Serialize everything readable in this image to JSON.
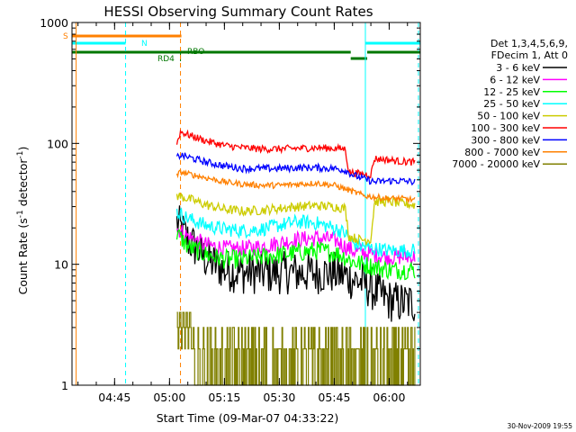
{
  "chart_data": {
    "type": "line",
    "title": "HESSI Observing Summary Count Rates",
    "xlabel": "Start Time (09-Mar-07 04:33:22)",
    "ylabel": "Count Rate (s⁻¹ detector⁻¹)",
    "ylabel_parts": {
      "main": "Count Rate (s",
      "exp1": "-1",
      "mid": " detector",
      "exp2": "-1",
      "end": ")"
    },
    "yscale": "log",
    "ylim": [
      1,
      1000
    ],
    "xlim": [
      "04:33:22",
      "06:08:30"
    ],
    "x_ticks": [
      "04:45",
      "05:00",
      "05:15",
      "05:30",
      "05:45",
      "06:00"
    ],
    "y_ticks": [
      "1",
      "10",
      "100",
      "1000"
    ],
    "legend_location": "right",
    "legend_header": [
      "Det 1,3,4,5,6,9,",
      "FDecim 1, Att 0"
    ],
    "series": [
      {
        "name": "3 - 6 keV",
        "color": "#000000",
        "x": [
          "05:02",
          "05:05",
          "05:10",
          "05:15",
          "05:20",
          "05:25",
          "05:30",
          "05:35",
          "05:40",
          "05:45",
          "05:48",
          "05:50",
          "05:53",
          "05:56",
          "06:00",
          "06:03",
          "06:07"
        ],
        "values": [
          22,
          16,
          11,
          9,
          8.5,
          8.5,
          8.5,
          8.5,
          8.5,
          8.5,
          8,
          7.5,
          7,
          6,
          5,
          4.8,
          4.8
        ],
        "noise": 0.18
      },
      {
        "name": "6 - 12 keV",
        "color": "#ff00ff",
        "x": [
          "05:02",
          "05:05",
          "05:10",
          "05:15",
          "05:20",
          "05:25",
          "05:30",
          "05:35",
          "05:40",
          "05:45",
          "05:48",
          "05:50",
          "05:53",
          "05:56",
          "06:00",
          "06:03",
          "06:07"
        ],
        "values": [
          20,
          17,
          14.5,
          13.5,
          13.5,
          14,
          15,
          16,
          16.5,
          16,
          14,
          13,
          12.5,
          12,
          11.5,
          11.5,
          11.5
        ],
        "noise": 0.07
      },
      {
        "name": "12 - 25 keV",
        "color": "#00ff00",
        "x": [
          "05:02",
          "05:05",
          "05:10",
          "05:15",
          "05:20",
          "05:25",
          "05:30",
          "05:35",
          "05:40",
          "05:45",
          "05:48",
          "05:50",
          "05:53",
          "05:56",
          "06:00",
          "06:03",
          "06:07"
        ],
        "values": [
          18,
          14,
          12,
          11,
          11,
          11.5,
          12,
          12.5,
          13,
          12.5,
          11.5,
          10.5,
          10,
          9.5,
          9,
          9,
          9
        ],
        "noise": 0.08
      },
      {
        "name": "25 - 50 keV",
        "color": "#00ffff",
        "x": [
          "05:02",
          "05:05",
          "05:10",
          "05:15",
          "05:20",
          "05:25",
          "05:30",
          "05:35",
          "05:40",
          "05:45",
          "05:48",
          "05:50",
          "05:53",
          "05:56",
          "06:00",
          "06:03",
          "06:07"
        ],
        "values": [
          27,
          24,
          21,
          19.5,
          19,
          19.5,
          21,
          22.5,
          22,
          20,
          18,
          15,
          14,
          13.5,
          13,
          13,
          13
        ],
        "noise": 0.06
      },
      {
        "name": "50 - 100 keV",
        "color": "#cccc00",
        "x": [
          "05:02",
          "05:05",
          "05:10",
          "05:15",
          "05:20",
          "05:25",
          "05:30",
          "05:35",
          "05:40",
          "05:45",
          "05:48",
          "05:49",
          "05:52",
          "05:55",
          "05:56",
          "06:00",
          "06:03",
          "06:07"
        ],
        "values": [
          37,
          35,
          31,
          28.5,
          27.5,
          28,
          29,
          30,
          30.5,
          30,
          29,
          17,
          16,
          16,
          33,
          33,
          32,
          31
        ],
        "noise": 0.04
      },
      {
        "name": "100 - 300 keV",
        "color": "#ff0000",
        "x": [
          "05:02",
          "05:03",
          "05:05",
          "05:10",
          "05:15",
          "05:20",
          "05:25",
          "05:30",
          "05:35",
          "05:40",
          "05:45",
          "05:48",
          "05:49",
          "05:52",
          "05:55",
          "05:56",
          "06:00",
          "06:03",
          "06:07"
        ],
        "values": [
          100,
          125,
          118,
          105,
          96,
          92,
          90,
          90,
          91,
          92,
          91,
          90,
          58,
          56,
          55,
          75,
          73,
          71,
          70
        ],
        "noise": 0.03
      },
      {
        "name": "300 - 800 keV",
        "color": "#0000ff",
        "x": [
          "05:02",
          "05:03",
          "05:05",
          "05:10",
          "05:15",
          "05:20",
          "05:25",
          "05:30",
          "05:35",
          "05:40",
          "05:45",
          "05:48",
          "05:50",
          "05:53",
          "05:56",
          "06:00",
          "06:03",
          "06:07"
        ],
        "values": [
          76,
          80,
          77,
          70,
          65,
          62,
          62,
          62,
          63,
          63,
          62,
          60,
          55,
          51,
          48,
          49,
          49,
          48
        ],
        "noise": 0.03
      },
      {
        "name": "800 - 7000 keV",
        "color": "#ff8000",
        "x": [
          "05:02",
          "05:03",
          "05:05",
          "05:10",
          "05:15",
          "05:20",
          "05:25",
          "05:30",
          "05:35",
          "05:40",
          "05:45",
          "05:48",
          "05:50",
          "05:53",
          "05:56",
          "06:00",
          "06:03",
          "06:07"
        ],
        "values": [
          54,
          58,
          56,
          52,
          48,
          46,
          45,
          45,
          46,
          47,
          45,
          42,
          40,
          37,
          36,
          35,
          35,
          34
        ],
        "noise": 0.025
      },
      {
        "name": "7000 - 20000 keV",
        "color": "#808000",
        "x": [
          "05:02",
          "05:04",
          "05:06",
          "05:10",
          "05:20",
          "05:30",
          "05:40",
          "05:50",
          "06:00",
          "06:07"
        ],
        "values": [
          4,
          3,
          2,
          2,
          2,
          2,
          2,
          2,
          2,
          2
        ],
        "noise": 0.0,
        "binned": true
      }
    ],
    "annotations": [
      {
        "text": "S",
        "color": "#ff8000"
      },
      {
        "text": "N",
        "color": "#00ffff"
      },
      {
        "text": "RD4",
        "color": "#007700"
      },
      {
        "text": "RBO",
        "color": "#007700"
      }
    ],
    "flag_bars": {
      "saa": {
        "color": "#ff8000",
        "from": "04:33:22",
        "to": "05:03:15"
      },
      "night": {
        "color": "#00ffff",
        "segments": [
          [
            "04:33:22",
            "04:48:00"
          ],
          [
            "05:53:30",
            "06:08:30"
          ]
        ]
      },
      "attenuator": {
        "color": "#007700",
        "segments": [
          [
            "04:33:22",
            "05:03:00"
          ],
          [
            "05:03:00",
            "05:49:30"
          ],
          [
            "05:49:30",
            "05:54:00"
          ],
          [
            "05:54:00",
            "06:08:30"
          ]
        ]
      }
    },
    "vertical_markers": [
      {
        "time": "04:34:30",
        "color": "#ff8000",
        "style": "solid"
      },
      {
        "time": "04:48:00",
        "color": "#00ffff",
        "style": "dashed"
      },
      {
        "time": "05:03:00",
        "color": "#ff8000",
        "style": "dashed"
      },
      {
        "time": "05:53:30",
        "color": "#00ffff",
        "style": "solid"
      },
      {
        "time": "06:08:00",
        "color": "#00ffff",
        "style": "dashed"
      }
    ]
  },
  "footer": {
    "timestamp": "30-Nov-2009 19:55"
  }
}
